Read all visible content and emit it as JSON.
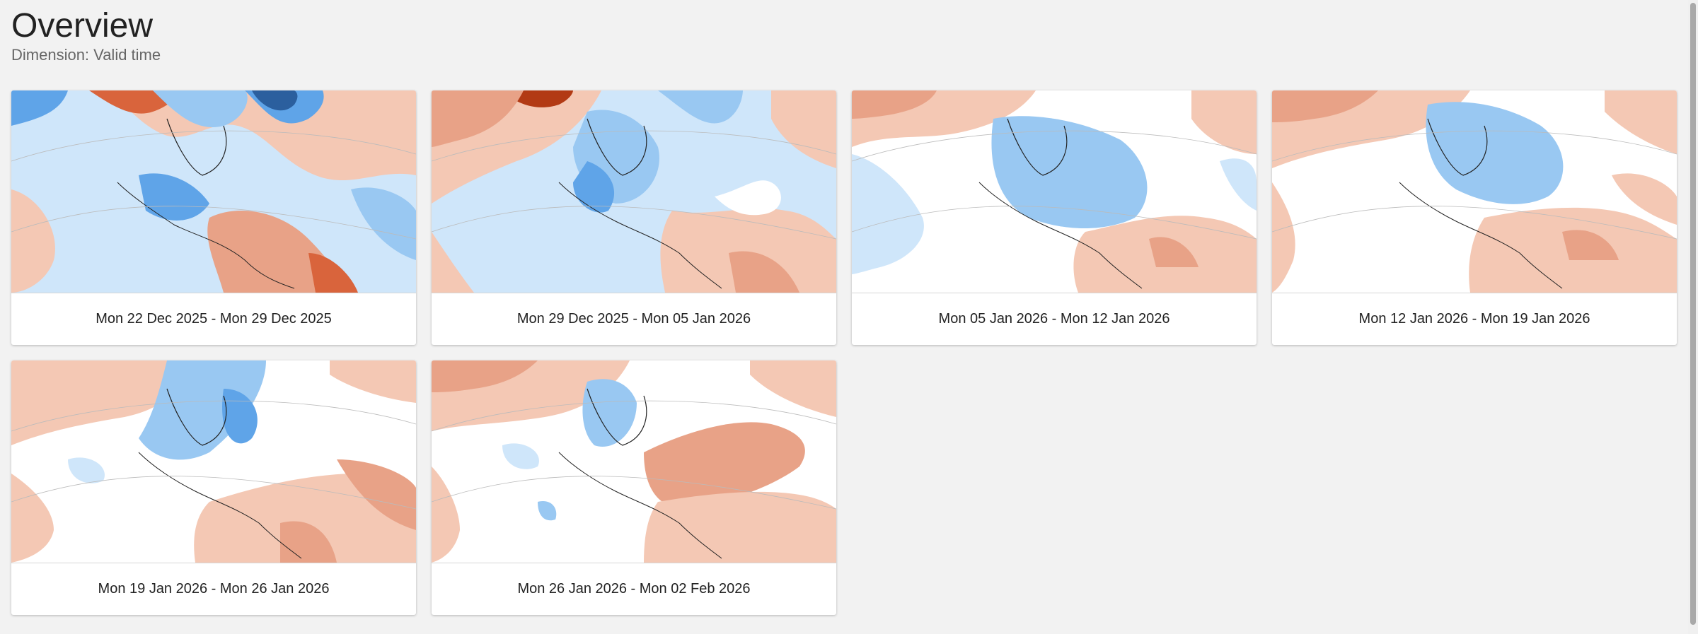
{
  "header": {
    "title": "Overview",
    "subtitle": "Dimension: Valid time"
  },
  "colors": {
    "warm_light": "#f4c8b4",
    "warm_mid": "#e8a287",
    "warm_strong": "#d9643c",
    "warm_extreme": "#b23a14",
    "cold_light": "#cfe6fa",
    "cold_mid": "#99c8f2",
    "cold_strong": "#5fa4e8",
    "cold_extreme": "#2b5f9e"
  },
  "cards": [
    {
      "label": "Mon 22 Dec 2025 - Mon 29 Dec 2025"
    },
    {
      "label": "Mon 29 Dec 2025 - Mon 05 Jan 2026"
    },
    {
      "label": "Mon 05 Jan 2026 - Mon 12 Jan 2026"
    },
    {
      "label": "Mon 12 Jan 2026 - Mon 19 Jan 2026"
    },
    {
      "label": "Mon 19 Jan 2026 - Mon 26 Jan 2026"
    },
    {
      "label": "Mon 26 Jan 2026 - Mon 02 Feb 2026"
    }
  ]
}
